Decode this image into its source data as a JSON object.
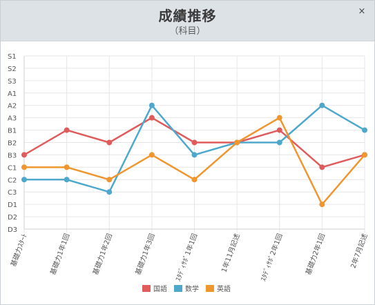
{
  "window": {
    "title": "成績推移",
    "subtitle": "（科目）",
    "close_label": "×"
  },
  "chart_data": {
    "type": "line",
    "title": "成績推移",
    "subtitle": "（科目）",
    "y_categories": [
      "S1",
      "S2",
      "S3",
      "A1",
      "A2",
      "A3",
      "B1",
      "B2",
      "B3",
      "C1",
      "C2",
      "C3",
      "D1",
      "D2",
      "D3"
    ],
    "x": [
      "基礎力ｽﾀｰﾄ",
      "基礎力1年1回",
      "基礎力1年2回",
      "基礎力1年3回",
      "ｽﾀﾃﾞｨｻﾎﾟ1年1回",
      "1年11月記述",
      "ｽﾀﾃﾞｨｻﾎﾟ2年1回",
      "基礎力2年1回",
      "2年7月記述"
    ],
    "series": [
      {
        "name": "国語",
        "color": "#e05c5c",
        "values": [
          "B3",
          "B1",
          "B2",
          "A3",
          "B2",
          "B2",
          "B1",
          "C1",
          "B3"
        ]
      },
      {
        "name": "数学",
        "color": "#4ea8cc",
        "values": [
          "C2",
          "C2",
          "C3",
          "A2",
          "B3",
          "B2",
          "B2",
          "A2",
          "B1"
        ]
      },
      {
        "name": "英語",
        "color": "#f0962e",
        "values": [
          "C1",
          "C1",
          "C2",
          "B3",
          "C2",
          "B2",
          "A3",
          "D1",
          "B3"
        ]
      }
    ],
    "grid": true,
    "legend_position": "bottom"
  }
}
